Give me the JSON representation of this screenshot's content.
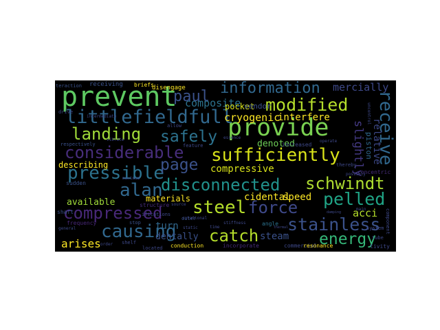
{
  "palette": {
    "page_background": "#ffffff",
    "cloud_background": "#000000",
    "colormap": "viridis"
  },
  "words": {
    "prevent": {
      "text": "prevent",
      "color": "#5ec962"
    },
    "provide": {
      "text": "provide",
      "color": "#7ad151"
    },
    "information": {
      "text": "information",
      "color": "#31688e"
    },
    "modified": {
      "text": "modified",
      "color": "#b5de2b"
    },
    "littlefieldfull": {
      "text": "littlefieldfull",
      "color": "#31688e"
    },
    "paul": {
      "text": "paul",
      "color": "#3b528b"
    },
    "landing": {
      "text": "landing",
      "color": "#a0da39"
    },
    "safely": {
      "text": "safely",
      "color": "#2c728e"
    },
    "considerable": {
      "text": "considerable",
      "color": "#472d7b"
    },
    "sufficiently": {
      "text": "sufficiently",
      "color": "#d8e219"
    },
    "receive": {
      "text": "receive",
      "color": "#31688e"
    },
    "pressible": {
      "text": "pressible",
      "color": "#2c728e"
    },
    "page": {
      "text": "page",
      "color": "#3b528b"
    },
    "alan": {
      "text": "alan",
      "color": "#31688e"
    },
    "disconnected": {
      "text": "disconnected",
      "color": "#21918c"
    },
    "schwindt": {
      "text": "schwindt",
      "color": "#addc30"
    },
    "compressed": {
      "text": "compressed",
      "color": "#482878"
    },
    "steel": {
      "text": "steel",
      "color": "#b5de2b"
    },
    "force": {
      "text": "force",
      "color": "#3e4989"
    },
    "pelled": {
      "text": "pelled",
      "color": "#20a486"
    },
    "stainless": {
      "text": "stainless",
      "color": "#3b528b"
    },
    "causing": {
      "text": "causing",
      "color": "#31688e"
    },
    "catch": {
      "text": "catch",
      "color": "#b5de2b"
    },
    "energy": {
      "text": "energy",
      "color": "#35b779"
    },
    "arises": {
      "text": "arises",
      "color": "#fde725"
    },
    "cryogenic": {
      "text": "cryogenic",
      "color": "#fde725"
    },
    "interfere": {
      "text": "interfere",
      "color": "#fde725"
    },
    "compressive": {
      "text": "compressive",
      "color": "#d8e219"
    },
    "composite": {
      "text": "composite",
      "color": "#2c728e"
    },
    "pocket": {
      "text": "pocket",
      "color": "#d8e219"
    },
    "denoted": {
      "text": "denoted",
      "color": "#6ece58"
    },
    "mercially": {
      "text": "mercially",
      "color": "#3e4989"
    },
    "relative": {
      "text": "relative",
      "color": "#3e4989"
    },
    "slightly": {
      "text": "slightly",
      "color": "#443983"
    },
    "piston": {
      "text": "piston",
      "color": "#31688e"
    },
    "vendor": {
      "text": "vendor",
      "color": "#3b528b"
    },
    "describing": {
      "text": "describing",
      "color": "#fde725"
    },
    "materials": {
      "text": "materials",
      "color": "#fde725"
    },
    "cidental": {
      "text": "cidental",
      "color": "#fde725"
    },
    "speed": {
      "text": "speed",
      "color": "#fde725"
    },
    "acci": {
      "text": "acci",
      "color": "#b5de2b"
    },
    "available": {
      "text": "available",
      "color": "#a0da39"
    },
    "turn": {
      "text": "turn",
      "color": "#31688e"
    },
    "dentally": {
      "text": "dentally",
      "color": "#3b528b"
    },
    "steam": {
      "text": "steam",
      "color": "#3b528b"
    },
    "receiving": {
      "text": "receiving",
      "color": "#3b528b"
    },
    "briefs": {
      "text": "briefs",
      "color": "#fde725"
    },
    "disengage": {
      "text": "disengage",
      "color": "#fde725"
    },
    "teraction": {
      "text": "teraction",
      "color": "#3b528b"
    },
    "sudden": {
      "text": "sudden",
      "color": "#3b528b"
    },
    "shaft": {
      "text": "shaft",
      "color": "#3b528b"
    },
    "frequency": {
      "text": "frequency",
      "color": "#482878"
    },
    "conduction": {
      "text": "conduction",
      "color": "#fde725"
    },
    "incorporate": {
      "text": "incorporate",
      "color": "#472d7b"
    },
    "commercial": {
      "text": "commercial",
      "color": "#3e4989"
    },
    "resonance": {
      "text": "resonance",
      "color": "#fde725"
    },
    "increased": {
      "text": "increased",
      "color": "#3e4989"
    },
    "respectively": {
      "text": "respectively",
      "color": "#3b528b"
    },
    "concentric": {
      "text": "concentric",
      "color": "#472d7b"
    },
    "thereby": {
      "text": "thereby",
      "color": "#3e4989"
    },
    "angle": {
      "text": "angle",
      "color": "#2c728e"
    },
    "structure": {
      "text": "structure",
      "color": "#472d7b"
    },
    "stop": {
      "text": "stop",
      "color": "#3b528b"
    },
    "outer": {
      "text": "outer",
      "color": "#3b528b"
    },
    "shelf": {
      "text": "shelf",
      "color": "#3e4989"
    },
    "located": {
      "text": "located",
      "color": "#3e4989"
    },
    "order": {
      "text": "order",
      "color": "#3e4989"
    },
    "component": {
      "text": "component",
      "color": "#3e4989"
    },
    "tube": {
      "text": "tube",
      "color": "#3e4989"
    },
    "system": {
      "text": "system",
      "color": "#3e4989"
    },
    "tivity": {
      "text": "tivity",
      "color": "#3e4989"
    },
    "feature": {
      "text": "feature",
      "color": "#3e4989"
    },
    "drive": {
      "text": "drive",
      "color": "#3e4989"
    },
    "intermediate": {
      "text": "intermediate",
      "color": "#3e4989"
    },
    "vibrate": {
      "text": "vibrate",
      "color": "#3e4989"
    },
    "rotational": {
      "text": "rotational",
      "color": "#3e4989"
    },
    "static": {
      "text": "static",
      "color": "#3e4989"
    },
    "time": {
      "text": "time",
      "color": "#3e4989"
    },
    "allow": {
      "text": "allow",
      "color": "#3e4989"
    },
    "source": {
      "text": "source",
      "color": "#3e4989"
    },
    "essence": {
      "text": "essence",
      "color": "#3e4989"
    },
    "main": {
      "text": "main",
      "color": "#3e4989"
    },
    "operate": {
      "text": "operate",
      "color": "#3e4989"
    },
    "general": {
      "text": "general",
      "color": "#3e4989"
    },
    "ifications": {
      "text": "ifications",
      "color": "#3e4989"
    },
    "maximum": {
      "text": "maximum",
      "color": "#3e4989"
    },
    "thermal": {
      "text": "thermal",
      "color": "#3e4989"
    },
    "stiffness": {
      "text": "stiffness",
      "color": "#3e4989"
    },
    "uncontrol": {
      "text": "uncontrol",
      "color": "#3e4989"
    },
    "damping": {
      "text": "damping",
      "color": "#3e4989"
    },
    "possibly": {
      "text": "possibly",
      "color": "#3e4989"
    }
  }
}
